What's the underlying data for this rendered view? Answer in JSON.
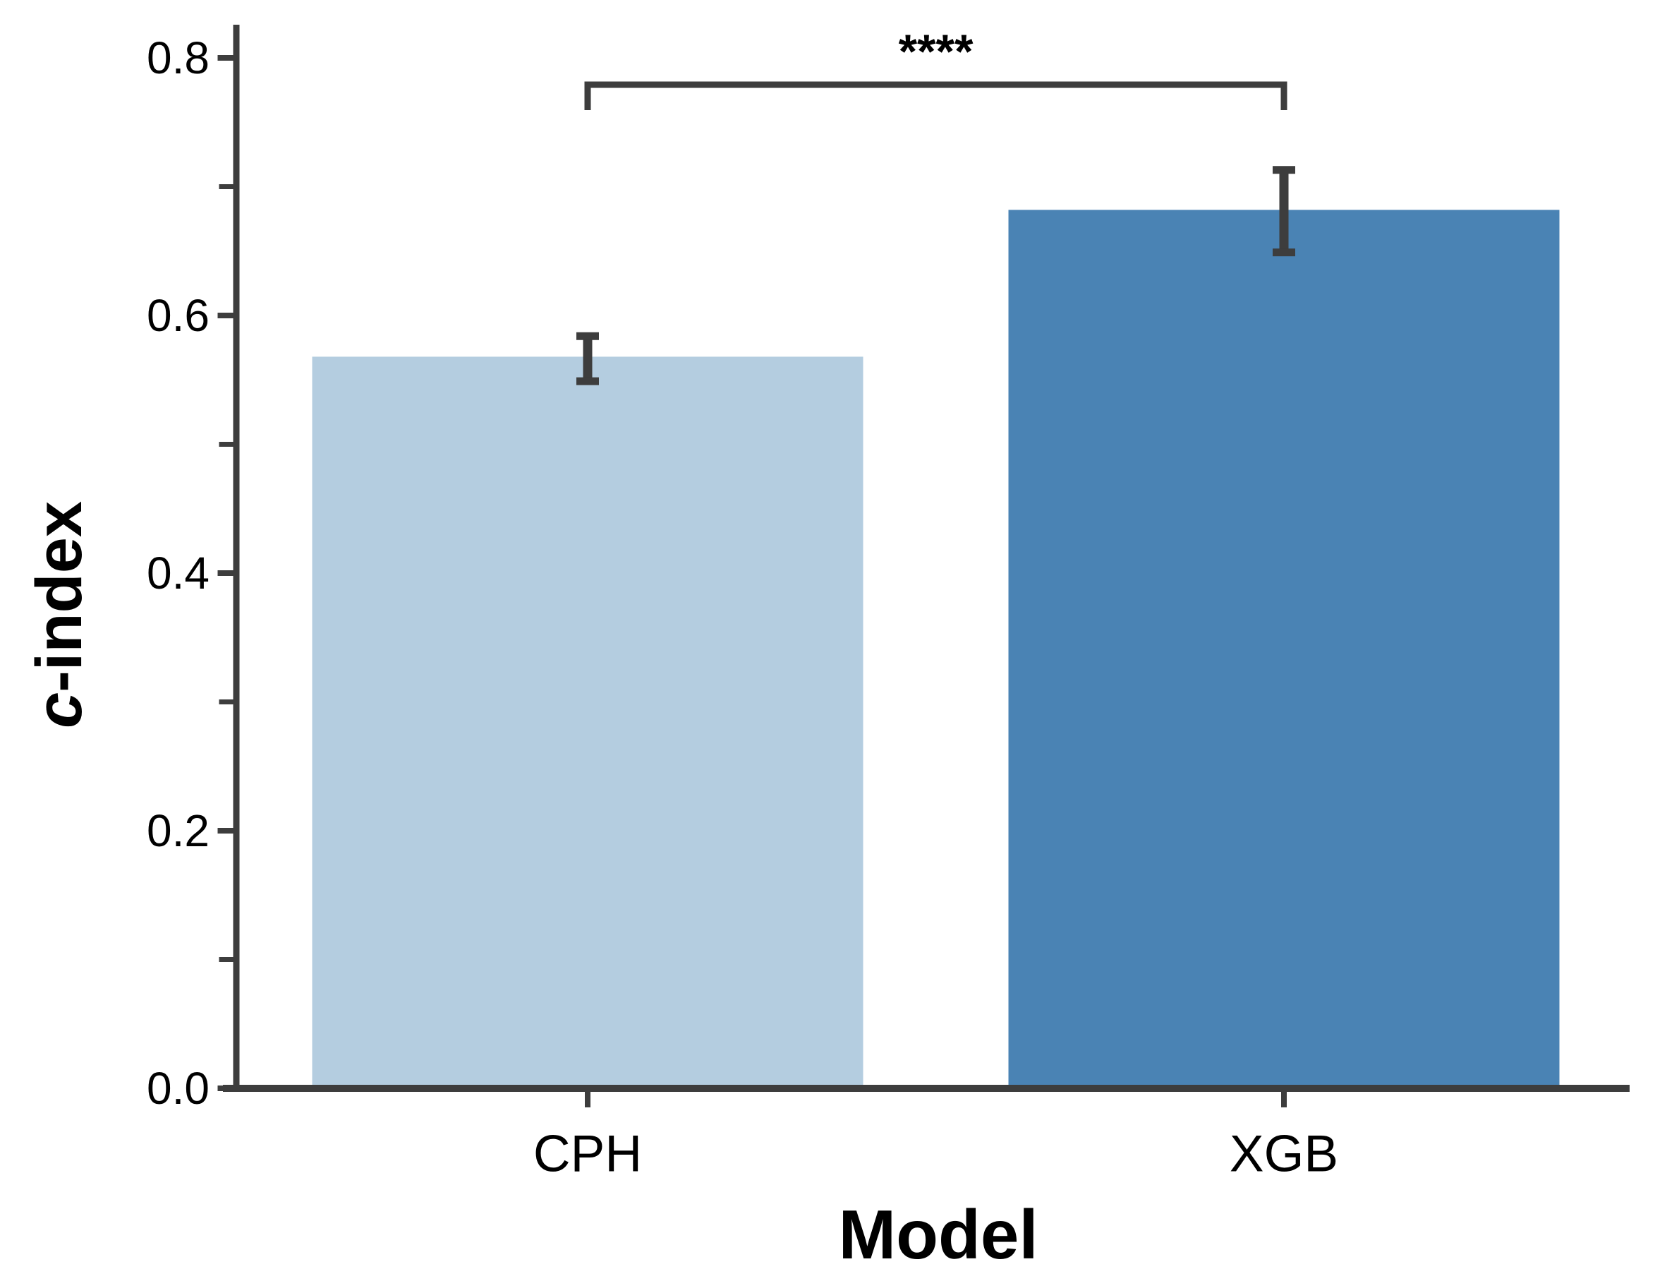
{
  "figure": {
    "background": "#ffffff",
    "axis_color": "#3d3d3d",
    "text_color": "#000000"
  },
  "chart_data": {
    "type": "bar",
    "title": "",
    "xlabel": "Model",
    "ylabel": "c-index",
    "ylabel_parts": {
      "italic": "c",
      "rest": "-index"
    },
    "categories": [
      "CPH",
      "XGB"
    ],
    "values": [
      0.568,
      0.682
    ],
    "error_low": [
      0.549,
      0.649
    ],
    "error_high": [
      0.584,
      0.713
    ],
    "bar_colors": [
      "#b4cde0",
      "#4a83b4"
    ],
    "error_color": "#3d3d3d",
    "ylim": [
      0,
      0.8
    ],
    "ytick_values": [
      0.0,
      0.2,
      0.4,
      0.6,
      0.8
    ],
    "ytick_labels": [
      "0.0",
      "0.2",
      "0.4",
      "0.6",
      "0.8"
    ],
    "ytick_minor_values": [
      0.1,
      0.3,
      0.5,
      0.7
    ],
    "grid": false,
    "legend_position": "none",
    "significance": {
      "label": "****",
      "between": [
        "CPH",
        "XGB"
      ]
    }
  }
}
